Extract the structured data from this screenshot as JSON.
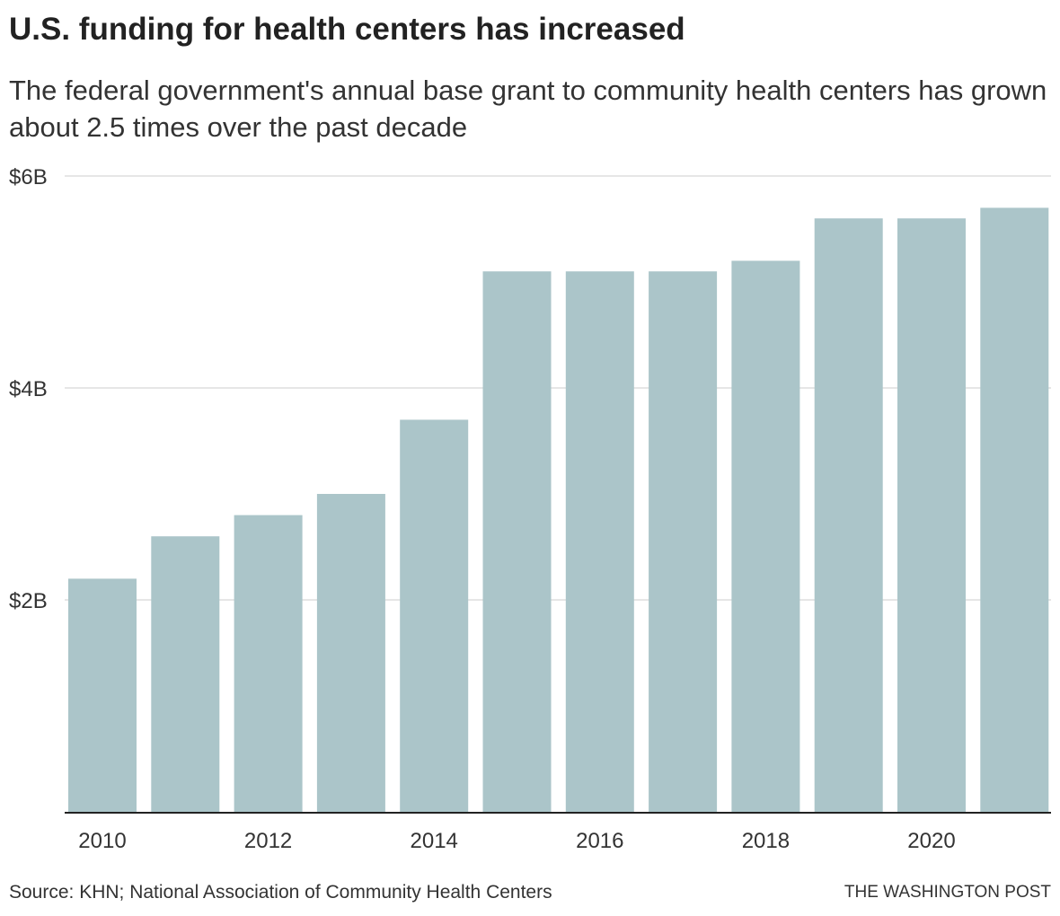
{
  "header": {
    "title": "U.S. funding for health centers has increased",
    "subtitle": "The federal government's annual base grant to community health centers has grown about 2.5 times over the past decade"
  },
  "footer": {
    "source": "Source: KHN; National Association of Community Health Centers",
    "credit": "THE WASHINGTON POST"
  },
  "colors": {
    "bar": "#abc5c9",
    "grid": "#dddddd",
    "axis": "#222222",
    "text": "#333333"
  },
  "chart_data": {
    "type": "bar",
    "title": "U.S. funding for health centers has increased",
    "subtitle": "The federal government's annual base grant to community health centers has grown about 2.5 times over the past decade",
    "xlabel": "",
    "ylabel": "",
    "categories": [
      "2010",
      "2011",
      "2012",
      "2013",
      "2014",
      "2015",
      "2016",
      "2017",
      "2018",
      "2019",
      "2020",
      "2021"
    ],
    "values": [
      2.2,
      2.6,
      2.8,
      3.0,
      3.7,
      5.1,
      5.1,
      5.1,
      5.2,
      5.6,
      5.6,
      5.7
    ],
    "unit": "billions of dollars",
    "ylim": [
      0,
      6
    ],
    "y_ticks": [
      {
        "value": 2,
        "label": "$2B"
      },
      {
        "value": 4,
        "label": "$4B"
      },
      {
        "value": 6,
        "label": "$6B"
      }
    ],
    "x_tick_labels": [
      "2010",
      "2012",
      "2014",
      "2016",
      "2018",
      "2020"
    ],
    "grid": true,
    "legend": "none"
  }
}
